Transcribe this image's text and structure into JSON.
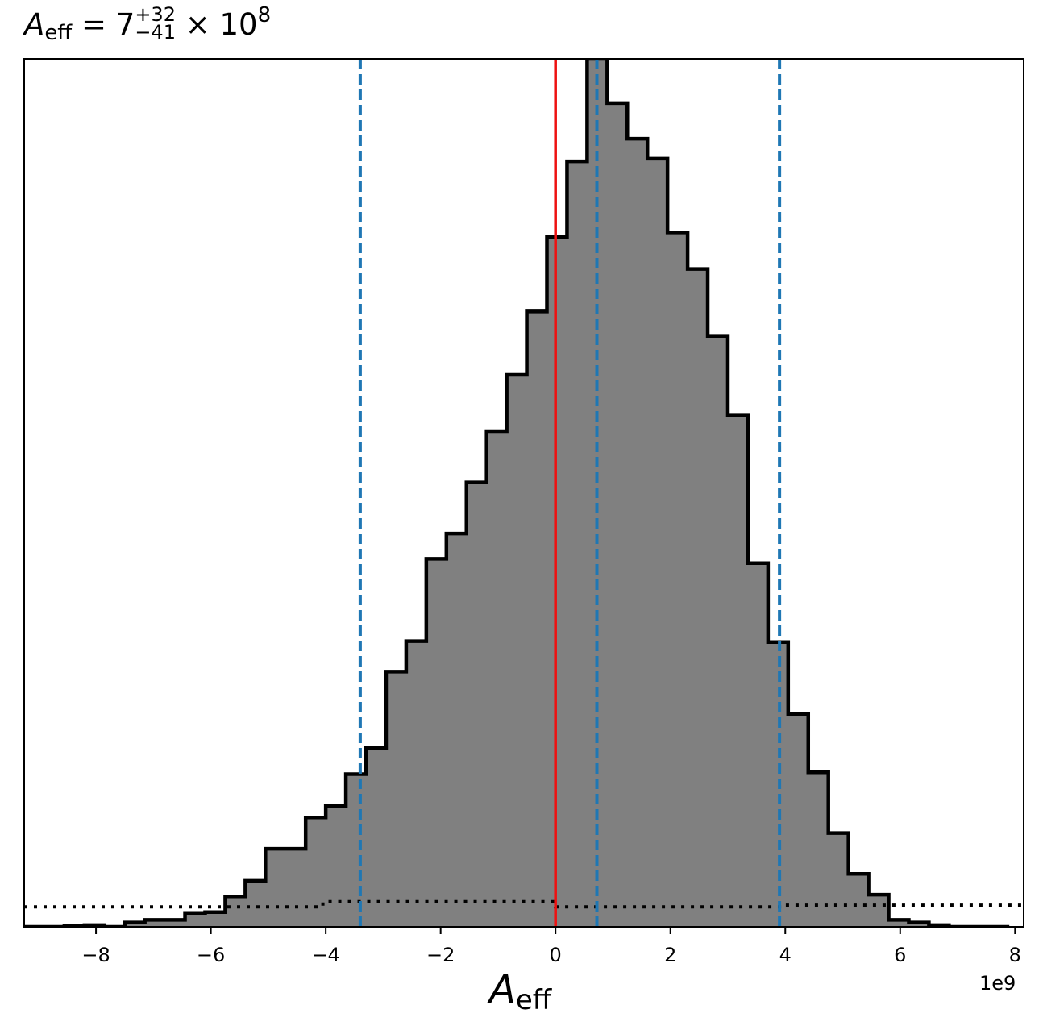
{
  "chart_data": {
    "type": "histogram",
    "title": {
      "symbol": "A",
      "subscript": "eff",
      "equals": " = 7",
      "sup": "+32",
      "sub": "−41",
      "times": " × 10",
      "exponent": "8"
    },
    "xlabel": {
      "symbol": "A",
      "subscript": "eff"
    },
    "x_offset_text": "1e9",
    "x_units_multiplier": 1000000000,
    "xlim": [
      -9.25,
      8.15
    ],
    "ylim": [
      0,
      1.0
    ],
    "x_ticks": [
      -8,
      -6,
      -4,
      -2,
      0,
      2,
      4,
      6,
      8
    ],
    "x_tick_labels": [
      "−8",
      "−6",
      "−4",
      "−2",
      "0",
      "2",
      "4",
      "6",
      "8"
    ],
    "y_ticks_shown": false,
    "bin_edges": [
      -9.25,
      -8.9,
      -8.55,
      -8.2,
      -7.85,
      -7.5,
      -7.15,
      -6.8,
      -6.45,
      -6.1,
      -5.75,
      -5.4,
      -5.05,
      -4.7,
      -4.35,
      -4.0,
      -3.65,
      -3.3,
      -2.95,
      -2.6,
      -2.25,
      -1.9,
      -1.55,
      -1.2,
      -0.85,
      -0.5,
      -0.15,
      0.2,
      0.55,
      0.9,
      1.25,
      1.6,
      1.95,
      2.3,
      2.65,
      3.0,
      3.35,
      3.7,
      4.05,
      4.4,
      4.75,
      5.1,
      5.45,
      5.8,
      6.15,
      6.5,
      6.85,
      7.2,
      7.55,
      7.9
    ],
    "counts": [
      0.0,
      0.0,
      0.001,
      0.002,
      0.0,
      0.005,
      0.008,
      0.008,
      0.016,
      0.017,
      0.035,
      0.053,
      0.09,
      0.09,
      0.126,
      0.139,
      0.176,
      0.206,
      0.294,
      0.329,
      0.424,
      0.453,
      0.512,
      0.571,
      0.636,
      0.709,
      0.795,
      0.882,
      1.0,
      0.949,
      0.908,
      0.885,
      0.8,
      0.758,
      0.68,
      0.589,
      0.419,
      0.328,
      0.245,
      0.178,
      0.108,
      0.061,
      0.037,
      0.008,
      0.005,
      0.002,
      0.0,
      0.0,
      0.0
    ],
    "histogram_fill": "#808080",
    "histogram_edge": "#000000",
    "prior_line": {
      "style": "dotted",
      "color": "#000000",
      "segments": [
        {
          "x0": -9.25,
          "x1": -4.05,
          "y": 0.023
        },
        {
          "x0": -4.05,
          "x1": 0.0,
          "y": 0.029
        },
        {
          "x0": 0.0,
          "x1": 4.0,
          "y": 0.023
        },
        {
          "x0": 4.0,
          "x1": 8.15,
          "y": 0.025
        }
      ]
    },
    "quantile_lines": {
      "color": "#1f77b4",
      "style": "dashed",
      "x": [
        -3.4,
        0.72,
        3.9
      ]
    },
    "truth_line": {
      "color": "#ee1111",
      "x": 0.0
    }
  }
}
